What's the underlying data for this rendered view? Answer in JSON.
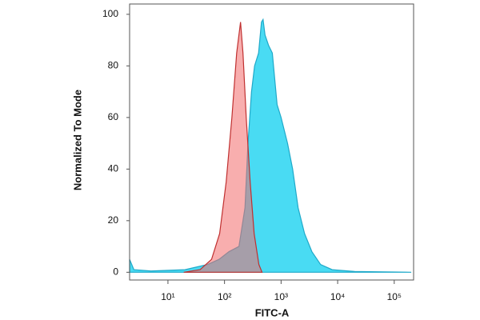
{
  "chart_data": {
    "type": "area",
    "xlabel": "FITC-A",
    "ylabel": "Normalized To Mode",
    "xscale": "log",
    "xlim": [
      2.1,
      220000
    ],
    "ylim": [
      -3,
      104
    ],
    "xticks": [
      {
        "value": 10,
        "label": "10¹"
      },
      {
        "value": 100,
        "label": "10²"
      },
      {
        "value": 1000,
        "label": "10³"
      },
      {
        "value": 10000,
        "label": "10⁴"
      },
      {
        "value": 100000,
        "label": "10⁵"
      }
    ],
    "yticks": [
      0,
      20,
      40,
      60,
      80,
      100
    ],
    "series": [
      {
        "color": "#3fd9f2",
        "stroke": "#1fa9c9",
        "x": [
          2.1,
          2.5,
          5,
          20,
          50,
          80,
          120,
          180,
          230,
          260,
          300,
          340,
          400,
          450,
          480,
          520,
          600,
          700,
          850,
          1000,
          1300,
          1600,
          2000,
          2600,
          3500,
          5000,
          8000,
          20000,
          200000
        ],
        "values": [
          5,
          1,
          0.5,
          1,
          3,
          5,
          8,
          10,
          25,
          50,
          70,
          80,
          85,
          97,
          98,
          92,
          88,
          85,
          65,
          60,
          50,
          40,
          25,
          15,
          8,
          3,
          1,
          0.3,
          0
        ]
      },
      {
        "color": "#f26b6b",
        "stroke": "#c03030",
        "x": [
          19,
          37,
          59,
          82,
          107,
          135,
          164,
          192,
          212,
          242,
          284,
          334,
          405,
          460
        ],
        "values": [
          0,
          1,
          5,
          15,
          35,
          60,
          85,
          97,
          85,
          60,
          35,
          15,
          3,
          0
        ]
      }
    ]
  }
}
